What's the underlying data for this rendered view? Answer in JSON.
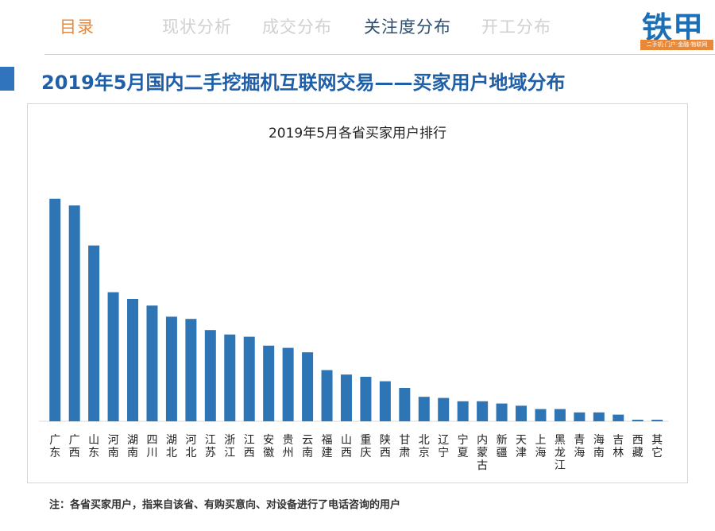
{
  "nav": {
    "toc": "目录",
    "items": [
      "现状分析",
      "成交分布",
      "关注度分布",
      "开工分布"
    ],
    "active_index": 2
  },
  "logo": {
    "text": "铁甲",
    "tagline": "二手机·门户·金融·物联网"
  },
  "page_title": "2019年5月国内二手挖掘机互联网交易——买家用户地域分布",
  "footnote": "注：各省买家用户，指来自该省、有购买意向、对设备进行了电话咨询的用户",
  "colors": {
    "bar": "#2e75b6",
    "title": "#1f5fa8",
    "accent": "#e8893a",
    "nav_active": "#2c4e73"
  },
  "chart_data": {
    "type": "bar",
    "title": "2019年5月各省买家用户排行",
    "categories": [
      "广东",
      "广西",
      "山东",
      "河南",
      "湖南",
      "四川",
      "湖北",
      "河北",
      "江苏",
      "浙江",
      "江西",
      "安徽",
      "贵州",
      "云南",
      "福建",
      "山西",
      "重庆",
      "陕西",
      "甘肃",
      "北京",
      "辽宁",
      "宁夏",
      "内蒙古",
      "新疆",
      "天津",
      "上海",
      "黑龙江",
      "青海",
      "海南",
      "吉林",
      "西藏",
      "其它"
    ],
    "values": [
      100,
      97,
      79,
      58,
      55,
      52,
      47,
      46,
      41,
      39,
      38,
      34,
      33,
      31,
      23,
      21,
      20,
      18,
      15,
      11,
      10.5,
      9,
      9,
      8,
      7,
      5.5,
      5.5,
      4,
      4,
      3,
      0.7,
      0.7
    ],
    "ylim": [
      0,
      100
    ],
    "grid": false,
    "legend": "none"
  }
}
